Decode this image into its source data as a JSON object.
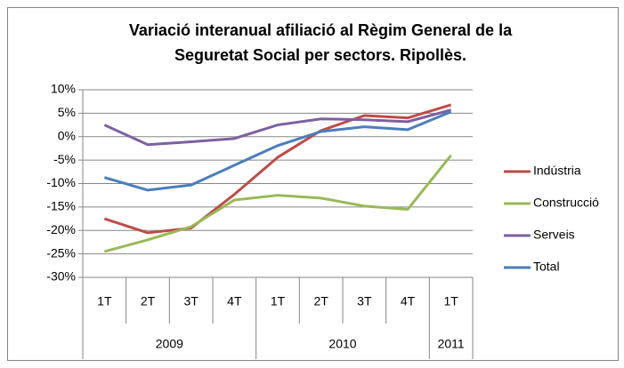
{
  "chart_data": {
    "type": "line",
    "title": [
      "Variació interanual afiliació al Règim General de la",
      "Seguretat Social per sectors. Ripollès."
    ],
    "category_groups": [
      {
        "label": "2009",
        "categories": [
          "1T",
          "2T",
          "3T",
          "4T"
        ]
      },
      {
        "label": "2010",
        "categories": [
          "1T",
          "2T",
          "3T",
          "4T"
        ]
      },
      {
        "label": "2011",
        "categories": [
          "1T"
        ]
      }
    ],
    "series": [
      {
        "name": "Indústria",
        "color": "#be4b48",
        "values": [
          -17.5,
          -20.5,
          -19.5,
          -12.3,
          -4.4,
          1.3,
          4.5,
          4,
          6.8
        ]
      },
      {
        "name": "Construcció",
        "color": "#98b954",
        "values": [
          -24.5,
          -22,
          -19.2,
          -13.5,
          -12.5,
          -13.1,
          -14.8,
          -15.5,
          -4
        ]
      },
      {
        "name": "Serveis",
        "color": "#7d60a0",
        "values": [
          2.5,
          -1.7,
          -1.1,
          -0.4,
          2.5,
          3.8,
          3.6,
          3.2,
          5.7
        ]
      },
      {
        "name": "Total",
        "color": "#4a7ebb",
        "values": [
          -8.7,
          -11.4,
          -10.3,
          -6.1,
          -1.9,
          1.1,
          2.1,
          1.5,
          5.3
        ]
      }
    ],
    "ylim": [
      -30,
      10
    ],
    "yticks": [
      {
        "value": 10,
        "label": "10%"
      },
      {
        "value": 5,
        "label": "5%"
      },
      {
        "value": 0,
        "label": "0%"
      },
      {
        "value": -5,
        "label": "-5%"
      },
      {
        "value": -10,
        "label": "-10%"
      },
      {
        "value": -15,
        "label": "-15%"
      },
      {
        "value": -20,
        "label": "-20%"
      },
      {
        "value": -25,
        "label": "-25%"
      },
      {
        "value": -30,
        "label": "-30%"
      }
    ],
    "grid": true,
    "legend": "right"
  }
}
